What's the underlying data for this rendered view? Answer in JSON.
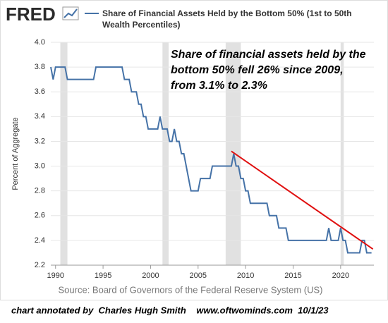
{
  "chart_data": {
    "type": "line",
    "logo": "FRED",
    "ylabel": "Percent of Aggregate",
    "source": "Source: Board of Governors of the Federal Reserve System (US)",
    "annotation_lines": [
      "Share of financial assets held by the",
      "bottom 50% fell 26% since 2009,",
      "from 3.1% to 2.3%"
    ],
    "footer": "chart annotated by  Charles Hugh Smith    www.oftwominds.com  10/1/23",
    "xlim": [
      1989.5,
      2023.5
    ],
    "xticks": [
      1990,
      1995,
      2000,
      2005,
      2010,
      2015,
      2020
    ],
    "ylim": [
      2.2,
      4.0
    ],
    "yticks": [
      2.2,
      2.4,
      2.6,
      2.8,
      {
        "value": 3,
        "label": "3.0"
      },
      3.2,
      3.4,
      3.6,
      3.8,
      {
        "value": 4,
        "label": "4.0"
      }
    ],
    "grid": true,
    "recessions": [
      [
        1990.5,
        1991.25
      ],
      [
        2001.25,
        2001.9
      ],
      [
        2007.9,
        2009.5
      ],
      [
        2020.0,
        2020.33
      ]
    ],
    "series": [
      {
        "name": "Share of Financial Assets Held by the Bottom 50% (1st to 50th Wealth Percentiles)",
        "color": "#4572a7",
        "x": [
          1989.5,
          1989.75,
          1990.0,
          1991.0,
          1991.25,
          1994.0,
          1994.25,
          1997.0,
          1997.25,
          1997.75,
          1998.0,
          1998.5,
          1998.75,
          1999.0,
          1999.25,
          1999.5,
          1999.75,
          2000.75,
          2001.0,
          2001.25,
          2001.75,
          2002.0,
          2002.25,
          2002.5,
          2002.75,
          2003.0,
          2003.25,
          2003.5,
          2004.25,
          2005.0,
          2005.25,
          2006.25,
          2006.5,
          2008.5,
          2008.75,
          2009.0,
          2009.25,
          2009.5,
          2009.75,
          2010.0,
          2010.25,
          2010.5,
          2012.25,
          2012.5,
          2013.25,
          2013.5,
          2014.25,
          2014.5,
          2018.5,
          2018.75,
          2019.0,
          2019.75,
          2020.0,
          2020.25,
          2020.5,
          2020.75,
          2022.0,
          2022.25,
          2022.5,
          2022.75,
          2023.25
        ],
        "values": [
          3.8,
          3.7,
          3.8,
          3.8,
          3.7,
          3.7,
          3.8,
          3.8,
          3.7,
          3.7,
          3.6,
          3.6,
          3.5,
          3.5,
          3.4,
          3.4,
          3.3,
          3.3,
          3.4,
          3.3,
          3.3,
          3.2,
          3.2,
          3.3,
          3.2,
          3.2,
          3.1,
          3.1,
          2.8,
          2.8,
          2.9,
          2.9,
          3.0,
          3.0,
          3.1,
          3.0,
          3.0,
          2.9,
          2.9,
          2.8,
          2.8,
          2.7,
          2.7,
          2.6,
          2.6,
          2.5,
          2.5,
          2.4,
          2.4,
          2.5,
          2.4,
          2.4,
          2.5,
          2.4,
          2.4,
          2.3,
          2.3,
          2.4,
          2.4,
          2.3,
          2.3
        ]
      }
    ],
    "trend_line": {
      "x": [
        2008.5,
        2023.4
      ],
      "y": [
        3.12,
        2.33
      ],
      "color": "#e01010"
    }
  }
}
